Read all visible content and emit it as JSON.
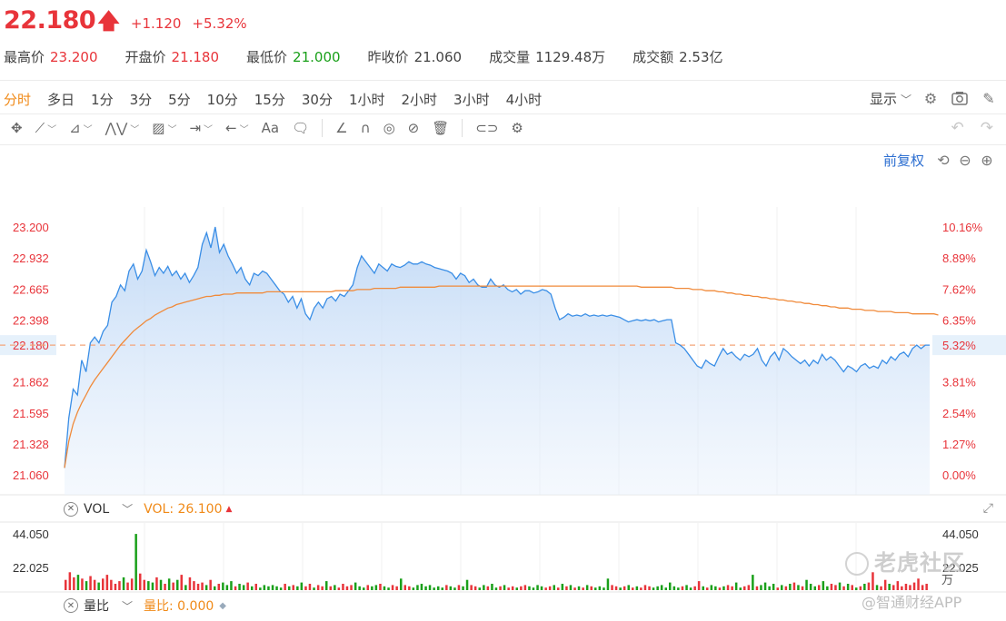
{
  "quote": {
    "price": "22.180",
    "change": "+1.120",
    "change_pct": "+5.32%",
    "stats": [
      {
        "label": "最高价",
        "value": "23.200",
        "color": "red"
      },
      {
        "label": "开盘价",
        "value": "21.180",
        "color": "red"
      },
      {
        "label": "最低价",
        "value": "21.000",
        "color": "green"
      },
      {
        "label": "昨收价",
        "value": "21.060",
        "color": "plain"
      },
      {
        "label": "成交量",
        "value": "1129.48万",
        "color": "plain"
      },
      {
        "label": "成交额",
        "value": "2.53亿",
        "color": "plain"
      }
    ]
  },
  "periods": [
    {
      "label": "分时",
      "active": true
    },
    {
      "label": "多日"
    },
    {
      "label": "1分"
    },
    {
      "label": "3分"
    },
    {
      "label": "5分"
    },
    {
      "label": "10分"
    },
    {
      "label": "15分"
    },
    {
      "label": "30分"
    },
    {
      "label": "1小时"
    },
    {
      "label": "2小时"
    },
    {
      "label": "3小时"
    },
    {
      "label": "4小时"
    }
  ],
  "display_label": "显示",
  "fuquan_label": "前复权",
  "price_axis": {
    "left": [
      "23.200",
      "22.932",
      "22.665",
      "22.398",
      "22.180",
      "21.862",
      "21.595",
      "21.328",
      "21.060"
    ],
    "right": [
      "10.16%",
      "8.89%",
      "7.62%",
      "6.35%",
      "5.32%",
      "3.81%",
      "2.54%",
      "1.27%",
      "0.00%"
    ],
    "current_price": "22.180",
    "current_pct": "5.32%"
  },
  "volume_panel": {
    "name": "VOL",
    "value_label": "VOL: 26.100",
    "left_axis": [
      "44.050",
      "22.025"
    ],
    "right_axis": [
      "44.050",
      "22.025"
    ],
    "unit": "万"
  },
  "ratio_panel": {
    "name": "量比",
    "value_label": "量比: 0.000"
  },
  "watermark": {
    "brand": "老虎社区",
    "source": "@智通财经APP"
  },
  "colors": {
    "up": "#e8343a",
    "down": "#1aa01a",
    "price_line": "#3a8ee6",
    "avg_line": "#f08a3a",
    "accent": "#f08a18",
    "link": "#2d6fd1"
  },
  "chart_data": {
    "type": "line",
    "ylim": [
      21.06,
      23.2
    ],
    "prev_close": 21.06,
    "series": [
      {
        "values": [
          21.12,
          21.55,
          21.8,
          21.75,
          22.05,
          21.95,
          22.2,
          22.25,
          22.2,
          22.3,
          22.35,
          22.55,
          22.6,
          22.7,
          22.65,
          22.82,
          22.88,
          22.75,
          22.82,
          23.0,
          22.9,
          22.78,
          22.85,
          22.8,
          22.86,
          22.78,
          22.82,
          22.75,
          22.8,
          22.72,
          22.78,
          22.85,
          23.05,
          23.15,
          23.02,
          23.2,
          22.98,
          23.05,
          22.95,
          22.88,
          22.8,
          22.85,
          22.75,
          22.7,
          22.8,
          22.78,
          22.82,
          22.8,
          22.75,
          22.7,
          22.65,
          22.62,
          22.55,
          22.6,
          22.5,
          22.58,
          22.45,
          22.4,
          22.5,
          22.55,
          22.5,
          22.58,
          22.6,
          22.56,
          22.62,
          22.6,
          22.65,
          22.7,
          22.85,
          22.95,
          22.9,
          22.85,
          22.8,
          22.88,
          22.85,
          22.82,
          22.88,
          22.86,
          22.85,
          22.87,
          22.9,
          22.88,
          22.88,
          22.9,
          22.88,
          22.87,
          22.85,
          22.84,
          22.83,
          22.82,
          22.8,
          22.75,
          22.8,
          22.78,
          22.72,
          22.75,
          22.7,
          22.68,
          22.68,
          22.75,
          22.7,
          22.68,
          22.7,
          22.66,
          22.64,
          22.66,
          22.62,
          22.65,
          22.65,
          22.63,
          22.64,
          22.66,
          22.65,
          22.62,
          22.5,
          22.4,
          22.42,
          22.45,
          22.43,
          22.44,
          22.43,
          22.45,
          22.43,
          22.44,
          22.43,
          22.44,
          22.43,
          22.44,
          22.43,
          22.42,
          22.4,
          22.38,
          22.39,
          22.4,
          22.39,
          22.4,
          22.39,
          22.4,
          22.38,
          22.39,
          22.4,
          22.4,
          22.2,
          22.18,
          22.15,
          22.1,
          22.05,
          22.0,
          21.98,
          22.05,
          22.02,
          22.0,
          22.08,
          22.15,
          22.1,
          22.12,
          22.08,
          22.05,
          22.1,
          22.08,
          22.1,
          22.15,
          22.05,
          22.0,
          22.08,
          22.12,
          22.05,
          22.15,
          22.12,
          22.08,
          22.05,
          22.02,
          22.05,
          22.0,
          22.05,
          22.02,
          22.1,
          22.05,
          22.08,
          22.05,
          22.0,
          21.95,
          22.0,
          21.98,
          21.95,
          22.0,
          22.02,
          21.98,
          22.0,
          21.98,
          22.05,
          22.02,
          22.08,
          22.05,
          22.1,
          22.12,
          22.08,
          22.15,
          22.18,
          22.15,
          22.18,
          22.18
        ]
      },
      {
        "values": [
          21.12,
          21.35,
          21.5,
          21.6,
          21.68,
          21.75,
          21.82,
          21.88,
          21.93,
          21.98,
          22.03,
          22.08,
          22.13,
          22.18,
          22.22,
          22.26,
          22.3,
          22.33,
          22.36,
          22.39,
          22.41,
          22.44,
          22.46,
          22.48,
          22.5,
          22.51,
          22.53,
          22.54,
          22.55,
          22.56,
          22.57,
          22.58,
          22.59,
          22.6,
          22.6,
          22.61,
          22.61,
          22.62,
          22.62,
          22.62,
          22.63,
          22.63,
          22.63,
          22.63,
          22.63,
          22.63,
          22.63,
          22.64,
          22.64,
          22.64,
          22.64,
          22.64,
          22.64,
          22.64,
          22.64,
          22.64,
          22.64,
          22.64,
          22.64,
          22.64,
          22.64,
          22.64,
          22.64,
          22.65,
          22.65,
          22.65,
          22.65,
          22.65,
          22.66,
          22.66,
          22.66,
          22.66,
          22.67,
          22.67,
          22.67,
          22.67,
          22.67,
          22.67,
          22.68,
          22.68,
          22.68,
          22.68,
          22.68,
          22.68,
          22.68,
          22.68,
          22.68,
          22.69,
          22.69,
          22.69,
          22.69,
          22.69,
          22.69,
          22.69,
          22.69,
          22.69,
          22.69,
          22.69,
          22.69,
          22.69,
          22.69,
          22.69,
          22.69,
          22.69,
          22.69,
          22.69,
          22.69,
          22.69,
          22.69,
          22.69,
          22.69,
          22.69,
          22.69,
          22.69,
          22.69,
          22.69,
          22.69,
          22.69,
          22.69,
          22.69,
          22.69,
          22.69,
          22.69,
          22.69,
          22.69,
          22.69,
          22.69,
          22.69,
          22.69,
          22.69,
          22.69,
          22.69,
          22.69,
          22.69,
          22.68,
          22.68,
          22.68,
          22.68,
          22.68,
          22.68,
          22.68,
          22.68,
          22.67,
          22.67,
          22.67,
          22.67,
          22.66,
          22.66,
          22.66,
          22.65,
          22.65,
          22.65,
          22.64,
          22.64,
          22.63,
          22.63,
          22.62,
          22.62,
          22.61,
          22.61,
          22.6,
          22.6,
          22.59,
          22.59,
          22.58,
          22.58,
          22.57,
          22.57,
          22.56,
          22.56,
          22.55,
          22.55,
          22.54,
          22.54,
          22.53,
          22.53,
          22.52,
          22.52,
          22.51,
          22.51,
          22.5,
          22.5,
          22.5,
          22.49,
          22.49,
          22.49,
          22.48,
          22.48,
          22.48,
          22.47,
          22.47,
          22.47,
          22.47,
          22.46,
          22.46,
          22.46,
          22.46,
          22.45,
          22.45,
          22.45,
          22.45,
          22.45,
          22.45,
          22.44
        ]
      }
    ],
    "volume": {
      "ylim": [
        0,
        44.05
      ],
      "values": [
        8,
        14,
        10,
        12,
        9,
        7,
        11,
        8,
        6,
        9,
        12,
        8,
        5,
        7,
        10,
        6,
        9,
        44,
        13,
        8,
        7,
        6,
        10,
        8,
        5,
        9,
        6,
        8,
        12,
        4,
        10,
        7,
        5,
        6,
        4,
        8,
        3,
        5,
        6,
        4,
        7,
        3,
        5,
        4,
        6,
        3,
        5,
        2,
        4,
        3,
        4,
        3,
        2,
        5,
        3,
        4,
        3,
        6,
        3,
        5,
        2,
        4,
        3,
        7,
        3,
        4,
        2,
        5,
        3,
        4,
        6,
        3,
        2,
        4,
        3,
        4,
        5,
        3,
        2,
        4,
        3,
        9,
        4,
        3,
        2,
        4,
        5,
        3,
        4,
        2,
        3,
        2,
        4,
        3,
        2,
        4,
        3,
        8,
        4,
        3,
        2,
        4,
        3,
        5,
        2,
        3,
        4,
        2,
        3,
        2,
        3,
        4,
        3,
        2,
        4,
        3,
        2,
        3,
        4,
        2,
        5,
        3,
        4,
        2,
        3,
        2,
        4,
        3,
        2,
        3,
        2,
        9,
        4,
        3,
        2,
        3,
        4,
        2,
        3,
        2,
        4,
        3,
        2,
        3,
        4,
        2,
        6,
        3,
        2,
        3,
        4,
        2,
        3,
        7,
        3,
        2,
        4,
        3,
        2,
        3,
        4,
        3,
        6,
        2,
        3,
        4,
        12,
        3,
        4,
        6,
        3,
        5,
        2,
        4,
        3,
        5,
        6,
        4,
        3,
        8,
        5,
        3,
        4,
        7,
        3,
        5,
        4,
        6,
        3,
        5,
        4,
        2,
        3,
        5,
        6,
        14,
        4,
        3,
        8,
        5,
        4,
        7,
        3,
        5,
        4,
        6,
        9,
        4,
        5
      ]
    }
  }
}
